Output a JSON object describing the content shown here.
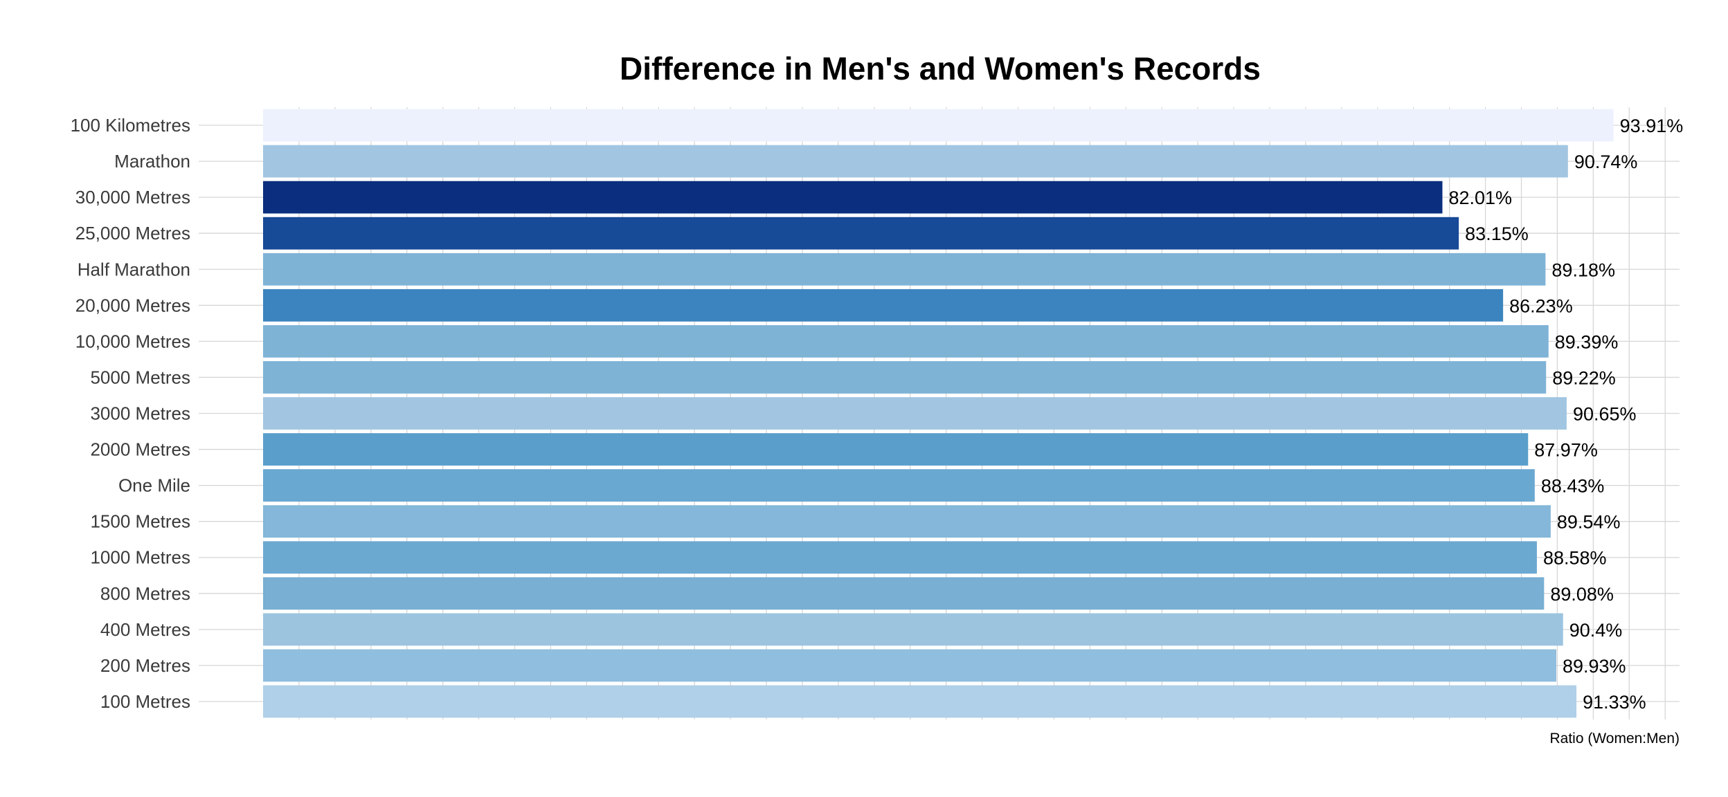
{
  "chart_data": {
    "type": "bar",
    "orientation": "horizontal",
    "title": "Difference in Men's and Women's Records",
    "xlabel": "Ratio (Women:Men)",
    "ylabel": "",
    "grid": true,
    "legend": "none",
    "categories": [
      "100 Kilometres",
      "Marathon",
      "30,000 Metres",
      "25,000 Metres",
      "Half Marathon",
      "20,000 Metres",
      "10,000 Metres",
      "5000 Metres",
      "3000 Metres",
      "2000 Metres",
      "One Mile",
      "1500 Metres",
      "1000 Metres",
      "800 Metres",
      "400 Metres",
      "200 Metres",
      "100 Metres"
    ],
    "values": [
      93.91,
      90.74,
      82.01,
      83.15,
      89.18,
      86.23,
      89.39,
      89.22,
      90.65,
      87.97,
      88.43,
      89.54,
      88.58,
      89.08,
      90.4,
      89.93,
      91.33
    ],
    "value_labels": [
      "93.91%",
      "90.74%",
      "82.01%",
      "83.15%",
      "89.18%",
      "86.23%",
      "89.39%",
      "89.22%",
      "90.65%",
      "87.97%",
      "88.43%",
      "89.54%",
      "88.58%",
      "89.08%",
      "90.4%",
      "89.93%",
      "91.33%"
    ],
    "bar_colors": [
      "#ecf1fd",
      "#a2c6e1",
      "#0b2f7e",
      "#174a97",
      "#7eb3d6",
      "#3c84bf",
      "#7eb3d6",
      "#7eb3d6",
      "#a2c6e1",
      "#5a9fcb",
      "#69a8d1",
      "#84b7d9",
      "#6ca9d1",
      "#78afd3",
      "#9cc4df",
      "#90bede",
      "#b0cfe8"
    ],
    "xlim": [
      0,
      98.5
    ],
    "grid_step": 5
  }
}
